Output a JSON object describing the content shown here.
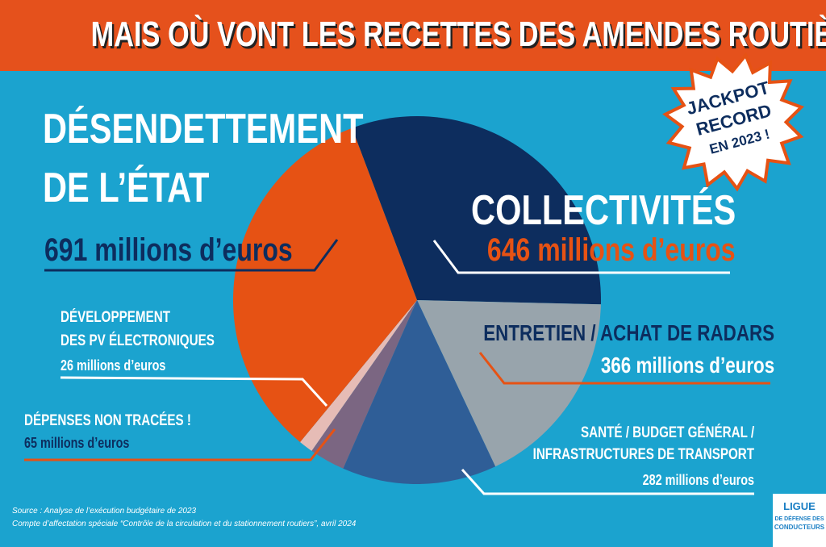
{
  "chart_data": {
    "type": "pie",
    "title": "MAIS OÙ VONT LES RECETTES DES AMENDES ROUTIÈRES ?",
    "categories": [
      "COLLECTIVITÉS",
      "ENTRETIEN / ACHAT DE RADARS",
      "SANTÉ / BUDGET GÉNÉRAL /\nINFRASTRUCTURES DE TRANSPORT",
      "DÉPENSES NON TRACÉES !",
      "DÉVELOPPEMENT\nDES PV ÉLECTRONIQUES",
      "DÉSENDETTEMENT\nDE L’ÉTAT"
    ],
    "values": [
      646,
      366,
      282,
      65,
      26,
      691
    ],
    "value_labels": [
      "646 millions d’euros",
      "366 millions d’euros",
      "282 millions d’euros",
      "65 millions d’euros",
      "26 millions d’euros",
      "691 millions d’euros"
    ],
    "colors": [
      "#0d2d5e",
      "#98a4ac",
      "#2f5e97",
      "#7b6682",
      "#e6bcb6",
      "#e65214"
    ]
  },
  "badge": {
    "lines": [
      "JACKPOT",
      "RECORD",
      "EN 2023 !"
    ]
  },
  "source": [
    "Source : Analyse de l’exécution budgétaire de 2023",
    "Compte d’affectation spéciale “Contrôle de la circulation et du stationnement routiers”, avril 2024"
  ],
  "logo": {
    "lines": [
      "LIGUE",
      "DE DÉFENSE DES",
      "CONDUCTEURS"
    ]
  }
}
